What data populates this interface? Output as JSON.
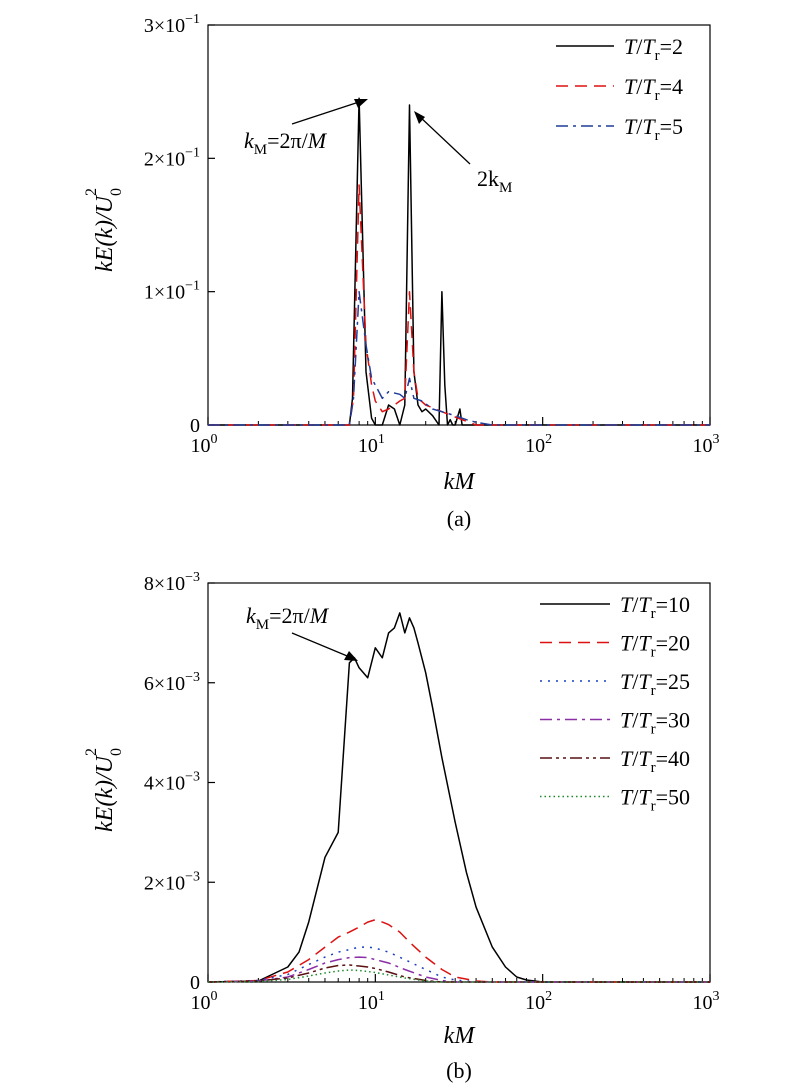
{
  "chart_data": [
    {
      "panel": "(a)",
      "type": "line",
      "xlabel": "kM",
      "ylabel": "kE(k)/U0^2",
      "xscale": "log",
      "xlim": [
        1,
        1000
      ],
      "ylim": [
        0,
        0.3
      ],
      "x_ticks": [
        {
          "value": 1,
          "base": "10",
          "exp": "0"
        },
        {
          "value": 10,
          "base": "10",
          "exp": "1"
        },
        {
          "value": 100,
          "base": "10",
          "exp": "2"
        },
        {
          "value": 1000,
          "base": "10",
          "exp": "3"
        }
      ],
      "y_ticks": [
        {
          "value": 0,
          "mant": "0",
          "exp": ""
        },
        {
          "value": 0.1,
          "mant": "1×10",
          "exp": "−1"
        },
        {
          "value": 0.2,
          "mant": "2×10",
          "exp": "−1"
        },
        {
          "value": 0.3,
          "mant": "3×10",
          "exp": "−1"
        }
      ],
      "legend_position": "top-right",
      "series": [
        {
          "name": "T/Tr=2",
          "ratio": "2",
          "color": "#000000",
          "dash": "solid",
          "x": [
            1,
            7,
            7.3,
            8,
            8.8,
            9.5,
            10,
            11,
            12,
            13,
            14,
            15,
            16,
            17,
            18,
            19,
            20,
            22,
            24,
            25,
            26,
            27,
            28,
            29,
            30,
            32,
            33,
            34,
            40,
            50,
            100,
            1000
          ],
          "y": [
            0,
            0,
            0.02,
            0.245,
            0.04,
            0.005,
            0,
            0,
            0.015,
            0.012,
            0,
            0.015,
            0.24,
            0.04,
            0.015,
            0.01,
            0.012,
            0.007,
            0,
            0.1,
            0.03,
            0,
            0.004,
            0,
            0,
            0.012,
            0,
            0,
            0,
            0,
            0,
            0
          ]
        },
        {
          "name": "T/Tr=4",
          "ratio": "4",
          "color": "#dd1111",
          "dash": "dash",
          "x": [
            1,
            7,
            7.4,
            8,
            8.8,
            9.5,
            10,
            11,
            12,
            13,
            14,
            15,
            16,
            17,
            18,
            20,
            25,
            30,
            40,
            50,
            100,
            1000
          ],
          "y": [
            0,
            0,
            0.02,
            0.18,
            0.06,
            0.03,
            0.018,
            0.01,
            0.012,
            0.015,
            0.018,
            0.02,
            0.1,
            0.04,
            0.02,
            0.015,
            0.01,
            0.006,
            0,
            0,
            0,
            0
          ]
        },
        {
          "name": "T/Tr=5",
          "ratio": "5",
          "color": "#1f3d99",
          "dash": "dashdot",
          "x": [
            1,
            7,
            7.4,
            8,
            8.8,
            9.5,
            10,
            11,
            12,
            14,
            15,
            16,
            17,
            19,
            22,
            25,
            30,
            35,
            40,
            50,
            100,
            1000
          ],
          "y": [
            0,
            0,
            0.02,
            0.1,
            0.06,
            0.035,
            0.03,
            0.02,
            0.025,
            0.023,
            0.02,
            0.035,
            0.02,
            0.018,
            0.012,
            0.01,
            0.007,
            0.004,
            0.002,
            0,
            0,
            0
          ]
        }
      ],
      "annotations": [
        {
          "text_main": "k",
          "text_sub": "M",
          "text_rest": "=2π/",
          "text_italic_end": "M"
        },
        {
          "text_main": "2k",
          "text_sub": "M"
        }
      ]
    },
    {
      "panel": "(b)",
      "type": "line",
      "xlabel": "kM",
      "ylabel": "kE(k)/U0^2",
      "xscale": "log",
      "xlim": [
        1,
        1000
      ],
      "ylim": [
        0,
        0.008
      ],
      "x_ticks": [
        {
          "value": 1,
          "base": "10",
          "exp": "0"
        },
        {
          "value": 10,
          "base": "10",
          "exp": "1"
        },
        {
          "value": 100,
          "base": "10",
          "exp": "2"
        },
        {
          "value": 1000,
          "base": "10",
          "exp": "3"
        }
      ],
      "y_ticks": [
        {
          "value": 0,
          "mant": "0",
          "exp": ""
        },
        {
          "value": 0.002,
          "mant": "2×10",
          "exp": "−3"
        },
        {
          "value": 0.004,
          "mant": "4×10",
          "exp": "−3"
        },
        {
          "value": 0.006,
          "mant": "6×10",
          "exp": "−3"
        },
        {
          "value": 0.008,
          "mant": "8×10",
          "exp": "−3"
        }
      ],
      "legend_position": "top-right",
      "series": [
        {
          "name": "T/Tr=10",
          "ratio": "10",
          "color": "#000000",
          "dash": "solid",
          "x": [
            1,
            2,
            3,
            3.5,
            4,
            5,
            6,
            7,
            7.5,
            8,
            9,
            10,
            11,
            12,
            13,
            14,
            15,
            16,
            17,
            18,
            20,
            22,
            25,
            30,
            35,
            40,
            50,
            60,
            70,
            80,
            100,
            1000
          ],
          "y": [
            0,
            2e-05,
            0.0003,
            0.0006,
            0.0012,
            0.0025,
            0.003,
            0.0064,
            0.0065,
            0.0063,
            0.0061,
            0.0067,
            0.0065,
            0.007,
            0.0071,
            0.0074,
            0.007,
            0.0073,
            0.0071,
            0.0068,
            0.0062,
            0.0055,
            0.0045,
            0.0032,
            0.0022,
            0.0015,
            0.0007,
            0.0003,
            0.0001,
            4e-05,
            0,
            0
          ]
        },
        {
          "name": "T/Tr=20",
          "ratio": "20",
          "color": "#dd1111",
          "dash": "dash",
          "x": [
            1,
            2,
            3,
            4,
            5,
            6,
            7,
            8,
            9,
            10,
            11,
            12,
            14,
            16,
            20,
            25,
            30,
            40,
            50,
            100,
            1000
          ],
          "y": [
            0,
            3e-05,
            0.0002,
            0.00045,
            0.0007,
            0.0009,
            0.001,
            0.0011,
            0.0012,
            0.00125,
            0.0012,
            0.00115,
            0.001,
            0.0008,
            0.0005,
            0.00025,
            0.0001,
            2e-05,
            0,
            0,
            0
          ]
        },
        {
          "name": "T/Tr=25",
          "ratio": "25",
          "color": "#1a3fbf",
          "dash": "dot",
          "x": [
            1,
            2,
            3,
            4,
            5,
            6,
            7,
            8,
            9,
            10,
            12,
            15,
            20,
            25,
            30,
            40,
            100,
            1000
          ],
          "y": [
            0,
            3e-05,
            0.00015,
            0.00035,
            0.0005,
            0.0006,
            0.00065,
            0.0007,
            0.0007,
            0.00068,
            0.0006,
            0.00045,
            0.00025,
            0.0001,
            4e-05,
            0,
            0,
            0
          ]
        },
        {
          "name": "T/Tr=30",
          "ratio": "30",
          "color": "#8b2fa6",
          "dash": "dashdot",
          "x": [
            1,
            2,
            3,
            4,
            5,
            6,
            7,
            8,
            9,
            10,
            12,
            15,
            20,
            25,
            30,
            100,
            1000
          ],
          "y": [
            0,
            2e-05,
            0.0001,
            0.00025,
            0.00038,
            0.00045,
            0.00049,
            0.0005,
            0.00049,
            0.00045,
            0.00038,
            0.00025,
            0.0001,
            3e-05,
            0,
            0,
            0
          ]
        },
        {
          "name": "T/Tr=40",
          "ratio": "40",
          "color": "#5a1010",
          "dash": "dashdotdot",
          "x": [
            1,
            2,
            3,
            4,
            5,
            6,
            7,
            8,
            9,
            10,
            12,
            15,
            20,
            25,
            100,
            1000
          ],
          "y": [
            0,
            2e-05,
            8e-05,
            0.00018,
            0.00028,
            0.00033,
            0.00034,
            0.00032,
            0.0003,
            0.00027,
            0.0002,
            0.0001,
            3e-05,
            0,
            0,
            0
          ]
        },
        {
          "name": "T/Tr=50",
          "ratio": "50",
          "color": "#1a8a2a",
          "dash": "finedot",
          "x": [
            1,
            2,
            3,
            4,
            5,
            6,
            7,
            8,
            9,
            10,
            12,
            15,
            20,
            25,
            100,
            1000
          ],
          "y": [
            0,
            1e-05,
            5e-05,
            0.00012,
            0.00018,
            0.00022,
            0.00024,
            0.00023,
            0.00021,
            0.00019,
            0.00014,
            8e-05,
            2e-05,
            0,
            0,
            0
          ]
        }
      ],
      "annotations": [
        {
          "text_main": "k",
          "text_sub": "M",
          "text_rest": "=2π/",
          "text_italic_end": "M"
        }
      ]
    }
  ]
}
